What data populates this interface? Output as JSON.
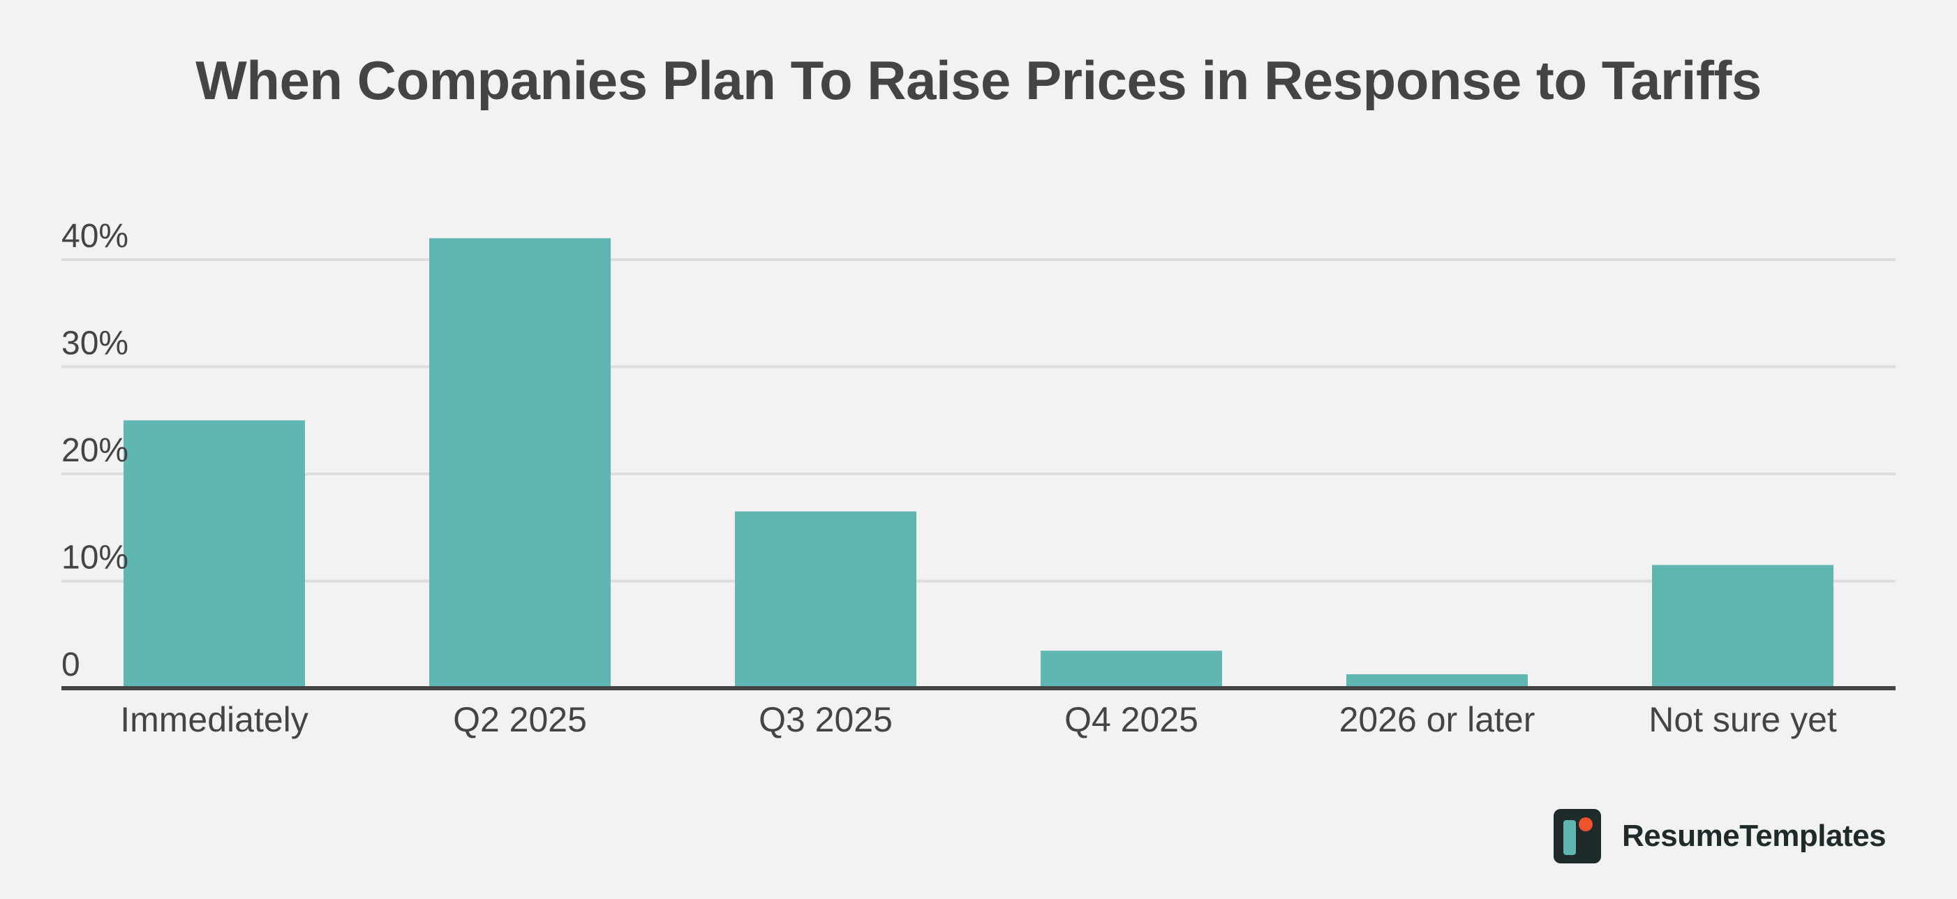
{
  "chart_data": {
    "type": "bar",
    "title": "When Companies Plan To Raise Prices in Response to Tariffs",
    "xlabel": "",
    "ylabel": "",
    "categories": [
      "Immediately",
      "Q2 2025",
      "Q3 2025",
      "Q4 2025",
      "2026 or later",
      "Not sure yet"
    ],
    "values": [
      25,
      42,
      16.5,
      3.5,
      1.3,
      11.5
    ],
    "value_unit": "%",
    "ylim": [
      0,
      40
    ],
    "yticks": [
      {
        "value": 0,
        "label": "0"
      },
      {
        "value": 10,
        "label": "10%"
      },
      {
        "value": 20,
        "label": "20%"
      },
      {
        "value": 30,
        "label": "30%"
      },
      {
        "value": 40,
        "label": "40%"
      }
    ],
    "grid": true,
    "legend": "none",
    "colors": {
      "bar": "#5fb6b3",
      "gridline": "#dddddd",
      "axis": "#444444",
      "text": "#444444"
    }
  },
  "branding": {
    "name": "ResumeTemplates",
    "logo_icon": "resumetemplates-logo-icon",
    "logo_colors": {
      "background": "#1f2a2a",
      "bar": "#5fb6b3",
      "dot": "#f0522e"
    }
  }
}
